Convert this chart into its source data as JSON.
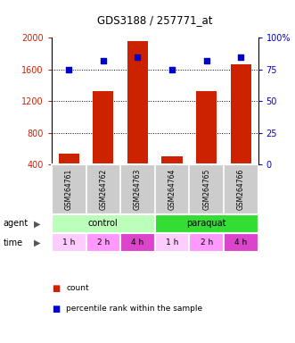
{
  "title": "GDS3188 / 257771_at",
  "samples": [
    "GSM264761",
    "GSM264762",
    "GSM264763",
    "GSM264764",
    "GSM264765",
    "GSM264766"
  ],
  "counts": [
    530,
    1320,
    1960,
    500,
    1330,
    1660
  ],
  "percentiles": [
    75,
    82,
    85,
    75,
    82,
    85
  ],
  "left_ylim": [
    400,
    2000
  ],
  "left_yticks": [
    400,
    800,
    1200,
    1600,
    2000
  ],
  "right_ylim": [
    0,
    100
  ],
  "right_yticks": [
    0,
    25,
    50,
    75,
    100
  ],
  "right_yticklabels": [
    "0",
    "25",
    "50",
    "75",
    "100%"
  ],
  "bar_color": "#cc2200",
  "dot_color": "#0000cc",
  "bar_width": 0.6,
  "time_labels": [
    "1 h",
    "2 h",
    "4 h",
    "1 h",
    "2 h",
    "4 h"
  ],
  "time_colors": [
    "#ffccff",
    "#ff99ff",
    "#dd44cc",
    "#ffccff",
    "#ff99ff",
    "#dd44cc"
  ],
  "control_color": "#bbffbb",
  "paraquat_color": "#33dd33",
  "sample_label_bg": "#cccccc",
  "legend_count_color": "#cc2200",
  "legend_dot_color": "#0000cc"
}
